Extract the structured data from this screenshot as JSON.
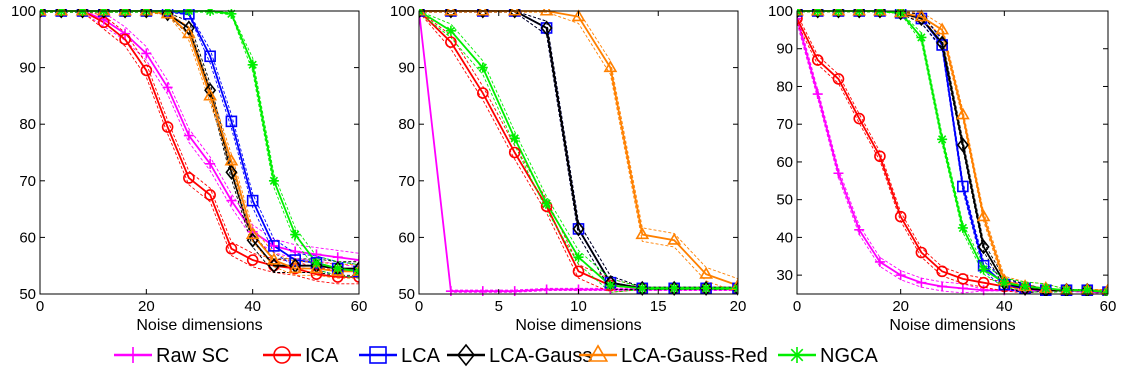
{
  "legend": [
    {
      "name": "Raw SC",
      "color": "#ff00ff",
      "marker": "plus"
    },
    {
      "name": "ICA",
      "color": "#ff0000",
      "marker": "circle"
    },
    {
      "name": "LCA",
      "color": "#0000ff",
      "marker": "square"
    },
    {
      "name": "LCA-Gauss",
      "color": "#000000",
      "marker": "diamond"
    },
    {
      "name": "LCA-Gauss-Red",
      "color": "#ff8000",
      "marker": "triangle"
    },
    {
      "name": "NGCA",
      "color": "#00ee00",
      "marker": "star"
    }
  ],
  "chart_data": [
    {
      "type": "line",
      "xlabel": "Noise dimensions",
      "ylabel": "",
      "xlim": [
        0,
        60
      ],
      "ylim": [
        50,
        100
      ],
      "xticks": [
        0,
        20,
        40,
        60
      ],
      "yticks": [
        50,
        60,
        70,
        80,
        90,
        100
      ],
      "x": [
        0,
        4,
        8,
        12,
        16,
        20,
        24,
        28,
        32,
        36,
        40,
        44,
        48,
        52,
        56,
        60
      ],
      "series": [
        {
          "name": "Raw SC",
          "values": [
            100,
            100,
            100,
            98.5,
            96,
            92.5,
            86.5,
            78,
            73,
            66.5,
            61,
            58.5,
            57.5,
            57,
            56.5,
            56
          ]
        },
        {
          "name": "ICA",
          "values": [
            100,
            100,
            100,
            98,
            95,
            89.5,
            79.5,
            70.5,
            67.5,
            58,
            56,
            55,
            54.5,
            53.5,
            53,
            53
          ]
        },
        {
          "name": "LCA",
          "values": [
            100,
            100,
            100,
            100,
            100,
            100,
            100,
            99.5,
            92,
            80.5,
            66.5,
            58.5,
            56,
            55.5,
            54.5,
            54
          ]
        },
        {
          "name": "LCA-Gauss",
          "values": [
            100,
            100,
            100,
            100,
            100,
            100,
            99.5,
            97,
            86,
            71.5,
            59.5,
            55,
            55,
            55,
            54.5,
            54.5
          ]
        },
        {
          "name": "LCA-Gauss-Red",
          "values": [
            100,
            100,
            100,
            100,
            100,
            100,
            99.5,
            96,
            85,
            73.5,
            60.5,
            56,
            54.5,
            54.5,
            54,
            54
          ]
        },
        {
          "name": "NGCA",
          "values": [
            100,
            100,
            100,
            100,
            100,
            100,
            100,
            100,
            100,
            99.5,
            90.5,
            70,
            60.5,
            55.5,
            54.5,
            54
          ]
        }
      ]
    },
    {
      "type": "line",
      "xlabel": "Noise dimensions",
      "ylabel": "",
      "xlim": [
        0,
        20
      ],
      "ylim": [
        50,
        100
      ],
      "xticks": [
        0,
        5,
        10,
        15,
        20
      ],
      "yticks": [
        50,
        60,
        70,
        80,
        90,
        100
      ],
      "x": [
        0,
        2,
        4,
        6,
        8,
        10,
        12,
        14,
        16,
        18,
        20
      ],
      "series": [
        {
          "name": "Raw SC",
          "values": [
            100,
            50.5,
            50.5,
            50.5,
            50.8,
            50.8,
            50.8,
            50.8,
            50.8,
            50.8,
            50.8
          ]
        },
        {
          "name": "ICA",
          "values": [
            100,
            94.5,
            85.5,
            75,
            65.5,
            54,
            51.5,
            51,
            51,
            51,
            51
          ]
        },
        {
          "name": "LCA",
          "values": [
            100,
            100,
            100,
            100,
            97,
            61.5,
            52,
            51,
            51,
            51,
            51
          ]
        },
        {
          "name": "LCA-Gauss",
          "values": [
            100,
            100,
            100,
            100,
            97,
            61.5,
            52,
            51,
            51,
            51,
            51
          ]
        },
        {
          "name": "LCA-Gauss-Red",
          "values": [
            100,
            100,
            100,
            100,
            100,
            99,
            90,
            60.5,
            59.5,
            53.5,
            51.5
          ]
        },
        {
          "name": "NGCA",
          "values": [
            100,
            96.5,
            90,
            77.5,
            66,
            56.5,
            51.5,
            51,
            51,
            51,
            51
          ]
        }
      ]
    },
    {
      "type": "line",
      "xlabel": "Noise dimensions",
      "ylabel": "",
      "xlim": [
        0,
        60
      ],
      "ylim": [
        25,
        100
      ],
      "xticks": [
        0,
        20,
        40,
        60
      ],
      "yticks": [
        30,
        40,
        50,
        60,
        70,
        80,
        90,
        100
      ],
      "x": [
        0,
        4,
        8,
        12,
        16,
        20,
        24,
        28,
        32,
        36,
        40,
        44,
        48,
        52,
        56,
        60
      ],
      "series": [
        {
          "name": "Raw SC",
          "values": [
            98,
            78,
            57,
            42,
            33.5,
            30,
            28,
            27,
            26.5,
            26,
            26,
            26,
            26,
            26,
            25.5,
            25.5
          ]
        },
        {
          "name": "ICA",
          "values": [
            98,
            87,
            82,
            71.5,
            61.5,
            45.5,
            36,
            31,
            29,
            28,
            27,
            26.5,
            26,
            26,
            26,
            25.5
          ]
        },
        {
          "name": "LCA",
          "values": [
            100,
            100,
            100,
            100,
            100,
            99.5,
            98,
            91,
            53.5,
            32.5,
            27.5,
            26.5,
            26,
            26,
            26,
            25.5
          ]
        },
        {
          "name": "LCA-Gauss",
          "values": [
            100,
            100,
            100,
            100,
            100,
            99.5,
            98,
            91.5,
            64.5,
            37.5,
            28,
            26.5,
            26,
            26,
            26,
            25.5
          ]
        },
        {
          "name": "LCA-Gauss-Red",
          "values": [
            100,
            100,
            100,
            100,
            100,
            99.5,
            98.5,
            95,
            72.5,
            45.5,
            28.5,
            27,
            26.5,
            26,
            26,
            26
          ]
        },
        {
          "name": "NGCA",
          "values": [
            100,
            100,
            100,
            100,
            100,
            99.5,
            93,
            66,
            42.5,
            31.5,
            28,
            27,
            26.5,
            26,
            26,
            25.5
          ]
        }
      ]
    }
  ]
}
